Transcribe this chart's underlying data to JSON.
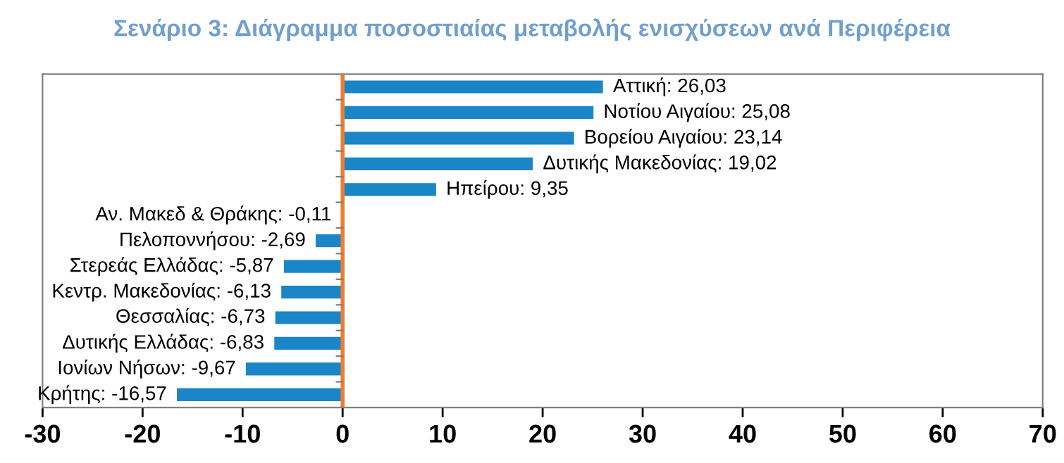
{
  "chart_data": {
    "type": "bar",
    "orientation": "horizontal",
    "title": "Σενάριο 3: Διάγραμμα ποσοστιαίας μεταβολής ενισχύσεων ανά Περιφέρεια",
    "categories": [
      null,
      null,
      null,
      null,
      null,
      null,
      null,
      null,
      null,
      null,
      null,
      null,
      null
    ],
    "values": [
      26.03,
      25.08,
      23.14,
      19.02,
      9.35,
      -0.11,
      -2.69,
      -5.87,
      -6.13,
      -6.73,
      -6.83,
      -9.67,
      -16.57
    ],
    "value_labels": [
      "Αττική: 26,03",
      "Νοτίου Αιγαίου: 25,08",
      "Βορείου Αιγαίου: 23,14",
      "Δυτικής Μακεδονίας: 19,02",
      "Ηπείρου: 9,35",
      "Αν. Μακεδ & Θράκης: -0,11",
      "Πελοποννήσου: -2,69",
      "Στερεάς Ελλάδας: -5,87",
      "Κεντρ. Μακεδονίας: -6,13",
      "Θεσσαλίας: -6,73",
      "Δυτικής Ελλάδας: -6,83",
      "Ιονίων Νήσων: -9,67",
      "Κρήτης: -16,57"
    ],
    "color": "#1a86c8",
    "xlim": [
      -30,
      70
    ],
    "xticks": [
      -30,
      -20,
      -10,
      0,
      10,
      20,
      30,
      40,
      50,
      60,
      70
    ],
    "tick_labels": "x",
    "ref_lines": [
      {
        "axis": "x",
        "value": 0,
        "color": "#ed7d31"
      }
    ],
    "grid": false,
    "legend": false
  }
}
